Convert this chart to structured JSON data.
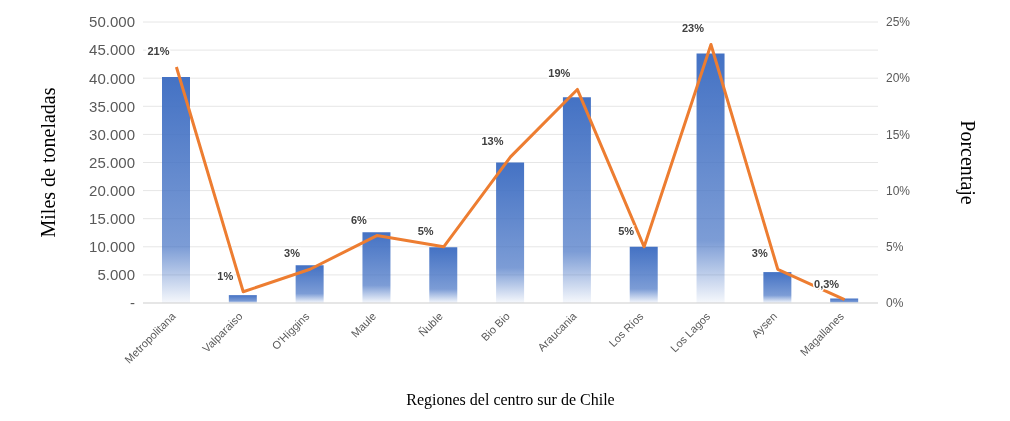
{
  "chart_data": {
    "type": "bar",
    "xlabel": "Regiones del centro sur de Chile",
    "ylabel": "Miles de toneladas",
    "y2label": "Porcentaje",
    "categories": [
      "Metropolitana",
      "Valparaiso",
      "O'Higgins",
      "Maule",
      "Ñuble",
      "Bio Bio",
      "Araucania",
      "Los Ríos",
      "Los Lagos",
      "Aysen",
      "Magallanes"
    ],
    "series": [
      {
        "color": "#4472c4",
        "values": [
          40200,
          1400,
          6700,
          12600,
          9900,
          25000,
          36600,
          10000,
          44400,
          5500,
          800
        ]
      },
      {
        "type": "line",
        "axis": "y2",
        "color": "#ed7d31",
        "values": [
          21,
          1,
          3,
          6,
          5,
          13,
          19,
          5,
          23,
          3,
          0.3
        ],
        "value_labels": [
          "21%",
          "1%",
          "3%",
          "6%",
          "5%",
          "13%",
          "19%",
          "5%",
          "23%",
          "3%",
          "0,3%"
        ]
      }
    ],
    "ylim": [
      0,
      50000
    ],
    "yticks": [
      {
        "value": 0,
        "label": "-"
      },
      {
        "value": 5000,
        "label": "5.000"
      },
      {
        "value": 10000,
        "label": "10.000"
      },
      {
        "value": 15000,
        "label": "15.000"
      },
      {
        "value": 20000,
        "label": "20.000"
      },
      {
        "value": 25000,
        "label": "25.000"
      },
      {
        "value": 30000,
        "label": "30.000"
      },
      {
        "value": 35000,
        "label": "35.000"
      },
      {
        "value": 40000,
        "label": "40.000"
      },
      {
        "value": 45000,
        "label": "45.000"
      },
      {
        "value": 50000,
        "label": "50.000"
      }
    ],
    "y2lim": [
      0,
      25
    ],
    "y2ticks": [
      {
        "value": 0,
        "label": "0%"
      },
      {
        "value": 5,
        "label": "5%"
      },
      {
        "value": 10,
        "label": "10%"
      },
      {
        "value": 15,
        "label": "15%"
      },
      {
        "value": 20,
        "label": "20%"
      },
      {
        "value": 25,
        "label": "25%"
      }
    ],
    "grid": "y",
    "legend": false,
    "marker": "none"
  }
}
